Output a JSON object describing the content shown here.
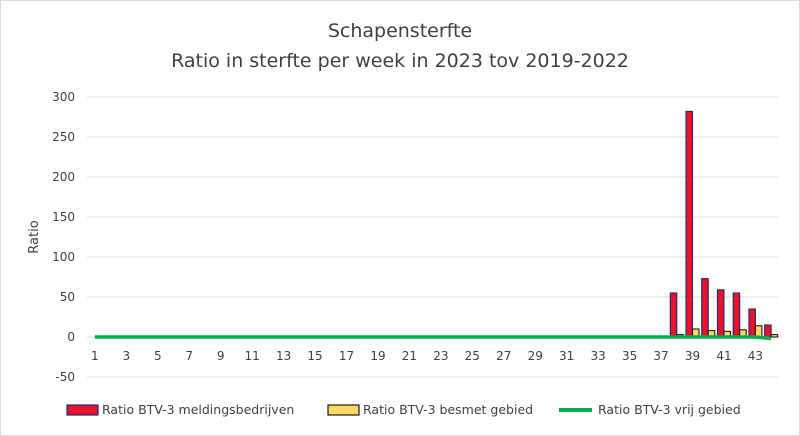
{
  "chart_data": {
    "type": "bar",
    "title_lines": [
      "Schapensterfte",
      "Ratio in sterfte per week in 2023 tov 2019-2022"
    ],
    "xlabel": "",
    "ylabel": "Ratio",
    "ylim": [
      -50,
      300
    ],
    "yticks": [
      300,
      250,
      200,
      150,
      100,
      50,
      0,
      -50
    ],
    "grid": true,
    "legend_position": "bottom",
    "categories": [
      1,
      2,
      3,
      4,
      5,
      6,
      7,
      8,
      9,
      10,
      11,
      12,
      13,
      14,
      15,
      16,
      17,
      18,
      19,
      20,
      21,
      22,
      23,
      24,
      25,
      26,
      27,
      28,
      29,
      30,
      31,
      32,
      33,
      34,
      35,
      36,
      37,
      38,
      39,
      40,
      41,
      42,
      43,
      44
    ],
    "xtick_labels": [
      "1",
      "3",
      "5",
      "7",
      "9",
      "11",
      "13",
      "15",
      "17",
      "19",
      "21",
      "23",
      "25",
      "27",
      "29",
      "31",
      "33",
      "35",
      "37",
      "39",
      "41",
      "43"
    ],
    "series": [
      {
        "name": "Ratio BTV-3 meldingsbedrijven",
        "kind": "bar",
        "fill": "#e8122d",
        "stroke": "#1f2a6b",
        "values": [
          0,
          0,
          0,
          0,
          0,
          0,
          0,
          0,
          0,
          0,
          0,
          0,
          0,
          0,
          0,
          0,
          0,
          0,
          0,
          0,
          0,
          0,
          0,
          0,
          0,
          0,
          0,
          0,
          0,
          0,
          0,
          0,
          0,
          0,
          0,
          0,
          0,
          55,
          282,
          73,
          59,
          55,
          35,
          15
        ]
      },
      {
        "name": "Ratio BTV-3 besmet gebied",
        "kind": "bar",
        "fill": "#ffd966",
        "stroke": "#1a1a1a",
        "values": [
          0,
          0,
          0,
          0,
          0,
          0,
          0,
          0,
          0,
          0,
          0,
          0,
          0,
          0,
          0,
          0,
          0,
          0,
          0,
          0,
          0,
          0,
          0,
          0,
          0,
          0,
          0,
          0,
          0,
          0,
          0,
          0,
          0,
          0,
          0,
          0,
          0,
          3,
          10,
          8,
          7,
          9,
          14,
          3
        ]
      },
      {
        "name": "Ratio BTV-3 vrij gebied",
        "kind": "line",
        "stroke": "#00b050",
        "values": [
          0,
          0,
          0,
          0,
          0,
          0,
          0,
          0,
          0,
          0,
          0,
          0,
          0,
          0,
          0,
          0,
          0,
          0,
          0,
          0,
          0,
          0,
          0,
          0,
          0,
          0,
          0,
          0,
          0,
          0,
          0,
          0,
          0,
          0,
          0,
          0,
          0,
          0,
          0,
          0,
          0,
          0,
          0,
          -2
        ]
      }
    ]
  }
}
